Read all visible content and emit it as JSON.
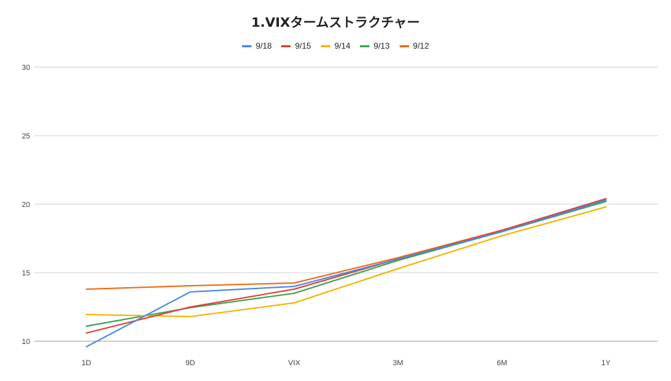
{
  "chart_data": {
    "type": "line",
    "title": "1.VIXタームストラクチャー",
    "xlabel": "",
    "ylabel": "",
    "categories": [
      "1D",
      "9D",
      "VIX",
      "3M",
      "6M",
      "1Y"
    ],
    "ylim": [
      10,
      30
    ],
    "yticks": [
      10,
      15,
      20,
      25,
      30
    ],
    "grid": true,
    "legend_position": "top",
    "series": [
      {
        "name": "9/18",
        "color": "#4a86e8",
        "values": [
          9.6,
          13.6,
          14.0,
          16.0,
          18.0,
          20.3
        ]
      },
      {
        "name": "9/15",
        "color": "#db4437",
        "values": [
          10.6,
          12.5,
          13.8,
          16.0,
          18.1,
          20.4
        ]
      },
      {
        "name": "9/14",
        "color": "#f4b400",
        "values": [
          11.95,
          11.8,
          12.8,
          15.3,
          17.7,
          19.8
        ]
      },
      {
        "name": "9/13",
        "color": "#3fa34d",
        "values": [
          11.1,
          12.45,
          13.5,
          15.9,
          18.0,
          20.2
        ]
      },
      {
        "name": "9/12",
        "color": "#ee6c14",
        "values": [
          13.8,
          14.05,
          14.25,
          16.1,
          18.1,
          20.3
        ]
      }
    ]
  }
}
